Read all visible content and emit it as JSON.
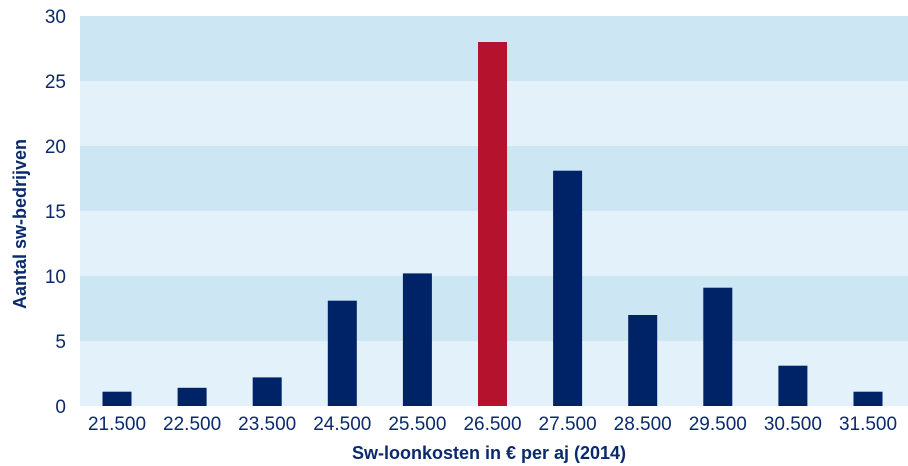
{
  "chart_data": {
    "type": "bar",
    "title": "",
    "xlabel": "Sw-loonkosten in € per aj (2014)",
    "ylabel": "Aantal sw-bedrijven",
    "categories": [
      "21.500",
      "22.500",
      "23.500",
      "24.500",
      "25.500",
      "26.500",
      "27.500",
      "28.500",
      "29.500",
      "30.500",
      "31.500"
    ],
    "values": [
      1.1,
      1.4,
      2.2,
      8.1,
      10.2,
      28.0,
      18.1,
      7.0,
      9.1,
      3.1,
      1.1
    ],
    "highlight_index": 5,
    "ylim": [
      0,
      30
    ],
    "yticks": [
      "0",
      "5",
      "10",
      "15",
      "20",
      "25",
      "30"
    ],
    "grid": "alternating-bands",
    "legend": "none",
    "colors": {
      "bar": "#002266",
      "highlight": "#b5122e",
      "band_dark": "#cde6f4",
      "band_light": "#e3f1fa",
      "text": "#0b2a6b"
    }
  }
}
